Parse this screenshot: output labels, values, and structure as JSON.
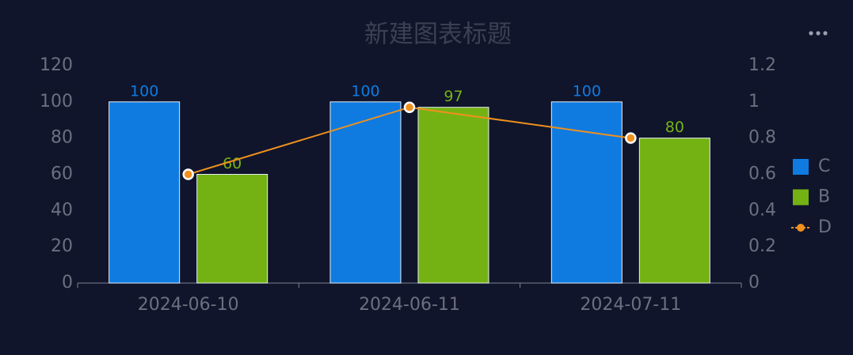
{
  "chart_data": {
    "type": "bar-line",
    "title": "新建图表标题",
    "categories": [
      "2024-06-10",
      "2024-06-11",
      "2024-07-11"
    ],
    "series": [
      {
        "name": "C",
        "type": "bar",
        "color": "#0f7be0",
        "values": [
          100,
          100,
          100
        ]
      },
      {
        "name": "B",
        "type": "bar",
        "color": "#74b214",
        "values": [
          60,
          97,
          80
        ]
      },
      {
        "name": "D",
        "type": "line",
        "axis": "y2",
        "color": "#f0901e",
        "values": [
          0.6,
          0.97,
          0.8
        ]
      }
    ],
    "ylim": [
      0,
      120
    ],
    "yticks": [
      0,
      20,
      40,
      60,
      80,
      100,
      120
    ],
    "y2lim": [
      0,
      1.2
    ],
    "y2ticks": [
      0,
      0.2,
      0.4,
      0.6,
      0.8,
      1,
      1.2
    ],
    "legend": "right"
  }
}
